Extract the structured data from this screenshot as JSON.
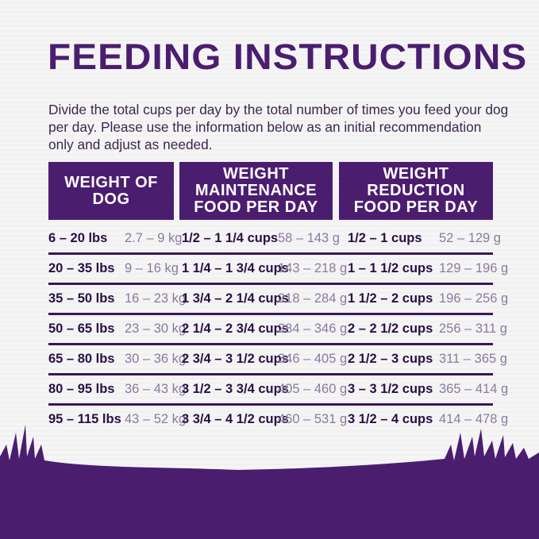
{
  "title": "FEEDING INSTRUCTIONS",
  "intro": "Divide the total cups per day by the total number of times you feed your dog per day. Please use the information below as an initial recommendation only and adjust as needed.",
  "headers": [
    "WEIGHT OF DOG",
    "WEIGHT MAINTENANCE FOOD PER DAY",
    "WEIGHT REDUCTION FOOD PER DAY"
  ],
  "colors": {
    "brand_purple": "#4b1d6f",
    "text_dark": "#2a0f45",
    "text_muted": "#8b7a9c"
  },
  "rows": [
    {
      "lbs": "6 – 20 lbs",
      "kg": "2.7 – 9 kg",
      "maint_cups": "1/2 – 1 1/4 cups",
      "maint_g": "58 – 143 g",
      "red_cups": "1/2 – 1 cups",
      "red_g": "52 – 129 g"
    },
    {
      "lbs": "20 – 35 lbs",
      "kg": "9 – 16 kg",
      "maint_cups": "1 1/4 – 1 3/4 cups",
      "maint_g": "143 – 218 g",
      "red_cups": "1 – 1 1/2 cups",
      "red_g": "129 – 196 g"
    },
    {
      "lbs": "35 – 50 lbs",
      "kg": "16 – 23 kg",
      "maint_cups": "1 3/4 – 2 1/4 cups",
      "maint_g": "218 – 284 g",
      "red_cups": "1 1/2 – 2 cups",
      "red_g": "196 – 256 g"
    },
    {
      "lbs": "50 – 65 lbs",
      "kg": "23 – 30 kg",
      "maint_cups": "2 1/4 – 2 3/4 cups",
      "maint_g": "284 – 346 g",
      "red_cups": "2 – 2 1/2 cups",
      "red_g": "256 – 311 g"
    },
    {
      "lbs": "65 – 80 lbs",
      "kg": "30 – 36 kg",
      "maint_cups": "2 3/4 – 3 1/2 cups",
      "maint_g": "346 – 405 g",
      "red_cups": "2 1/2 – 3 cups",
      "red_g": "311 – 365 g"
    },
    {
      "lbs": "80 – 95 lbs",
      "kg": "36 – 43 kg",
      "maint_cups": "3 1/2 – 3 3/4 cups",
      "maint_g": "405 – 460 g",
      "red_cups": "3 – 3 1/2 cups",
      "red_g": "365 – 414 g"
    },
    {
      "lbs": "95 – 115 lbs",
      "kg": "43 – 52 kg",
      "maint_cups": "3 3/4 – 4 1/2 cups",
      "maint_g": "460 – 531 g",
      "red_cups": "3 1/2 – 4 cups",
      "red_g": "414 – 478 g"
    }
  ]
}
